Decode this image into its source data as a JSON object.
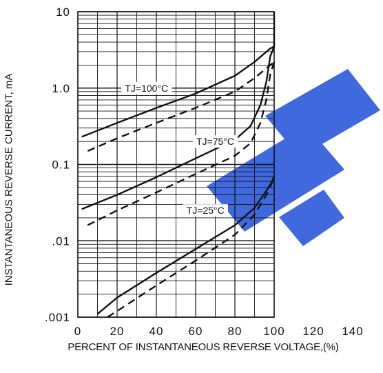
{
  "chart_data": {
    "type": "line",
    "title": "",
    "xlabel": "PERCENT OF INSTANTANEOUS REVERSE VOLTAGE,(%)",
    "ylabel": "INSTANTANEOUS REVERSE CURRENT, mA",
    "xlim": [
      0,
      140
    ],
    "ylim": [
      0.001,
      10
    ],
    "yscale": "log",
    "grid": true,
    "x_ticks": [
      "0",
      "20",
      "40",
      "60",
      "80",
      "100",
      "120",
      "140"
    ],
    "y_ticks": [
      {
        "value": 10,
        "label": "10"
      },
      {
        "value": 1,
        "label": "1.0"
      },
      {
        "value": 0.1,
        "label": "0.1"
      },
      {
        "value": 0.01,
        "label": ".01"
      },
      {
        "value": 0.001,
        "label": ".001"
      }
    ],
    "series": [
      {
        "name": "TJ=100°C",
        "style": "solid",
        "x": [
          2,
          20,
          40,
          60,
          80,
          90,
          98,
          100,
          100
        ],
        "y": [
          0.23,
          0.35,
          0.55,
          0.85,
          1.45,
          2.2,
          3.3,
          3.5,
          10
        ]
      },
      {
        "name": "TJ=100°C",
        "style": "dashed",
        "x": [
          5,
          20,
          40,
          60,
          80,
          90,
          98,
          100
        ],
        "y": [
          0.15,
          0.22,
          0.35,
          0.55,
          0.9,
          1.35,
          2.0,
          2.2
        ]
      },
      {
        "name": "TJ=75°C",
        "style": "solid",
        "x": [
          2,
          20,
          40,
          60,
          80,
          88,
          93,
          96,
          98,
          100
        ],
        "y": [
          0.026,
          0.04,
          0.068,
          0.12,
          0.21,
          0.32,
          0.6,
          1.2,
          2.6,
          3.5
        ]
      },
      {
        "name": "TJ=75°C",
        "style": "dashed",
        "x": [
          5,
          20,
          40,
          60,
          80,
          88,
          93,
          96,
          98,
          100
        ],
        "y": [
          0.016,
          0.025,
          0.043,
          0.075,
          0.13,
          0.19,
          0.35,
          0.7,
          1.5,
          2.2
        ]
      },
      {
        "name": "TJ=25°C",
        "style": "solid",
        "x": [
          10,
          20,
          40,
          60,
          80,
          90,
          96,
          99,
          100
        ],
        "y": [
          0.0011,
          0.0018,
          0.0038,
          0.0078,
          0.016,
          0.027,
          0.045,
          0.06,
          0.07
        ]
      },
      {
        "name": "TJ=25°C",
        "style": "dashed",
        "x": [
          15,
          20,
          40,
          60,
          80,
          90,
          96,
          99,
          100
        ],
        "y": [
          0.001,
          0.0012,
          0.0026,
          0.0055,
          0.012,
          0.022,
          0.04,
          0.058,
          0.07
        ]
      }
    ],
    "annotations": [
      {
        "text": "TJ=100°C",
        "x": 35,
        "y": 1.0
      },
      {
        "text": "TJ=75°C",
        "x": 70,
        "y": 0.2
      },
      {
        "text": "TJ=25°C",
        "x": 65,
        "y": 0.025
      }
    ],
    "colors": {
      "line": "#111111",
      "grid": "#111111",
      "watermark": "#1e4fd8"
    }
  }
}
